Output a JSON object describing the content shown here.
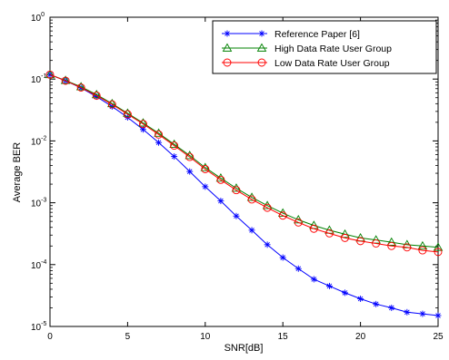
{
  "chart_data": {
    "type": "line",
    "xlabel": "SNR[dB]",
    "ylabel": "Average  BER",
    "xlim": [
      0,
      25
    ],
    "ylim_log10": [
      -5,
      0
    ],
    "y_scale": "log",
    "grid": false,
    "legend_position": "top-right",
    "x_ticks": [
      "0",
      "5",
      "10",
      "15",
      "20",
      "25"
    ],
    "y_ticks": [
      {
        "base": "10",
        "exp": "0"
      },
      {
        "base": "10",
        "exp": "-1"
      },
      {
        "base": "10",
        "exp": "-2"
      },
      {
        "base": "10",
        "exp": "-3"
      },
      {
        "base": "10",
        "exp": "-4"
      },
      {
        "base": "10",
        "exp": "-5"
      }
    ],
    "x": [
      0,
      1,
      2,
      3,
      4,
      5,
      6,
      7,
      8,
      9,
      10,
      11,
      12,
      13,
      14,
      15,
      16,
      17,
      18,
      19,
      20,
      21,
      22,
      23,
      24,
      25
    ],
    "series": [
      {
        "name": "Reference Paper [6]",
        "color": "#0000ff",
        "marker": "asterisk",
        "values": [
          0.118,
          0.094,
          0.072,
          0.052,
          0.036,
          0.024,
          0.0153,
          0.0094,
          0.0056,
          0.0032,
          0.00182,
          0.00107,
          0.00061,
          0.00036,
          0.00021,
          0.00013,
          8.6e-05,
          5.8e-05,
          4.5e-05,
          3.5e-05,
          2.8e-05,
          2.3e-05,
          2e-05,
          1.7e-05,
          1.6e-05,
          1.5e-05
        ]
      },
      {
        "name": "High Data Rate User Group",
        "color": "#008000",
        "marker": "triangle",
        "values": [
          0.118,
          0.095,
          0.075,
          0.056,
          0.04,
          0.028,
          0.0195,
          0.0133,
          0.0088,
          0.0058,
          0.0037,
          0.0025,
          0.00172,
          0.00122,
          0.0009,
          0.00068,
          0.00053,
          0.00043,
          0.00036,
          0.00031,
          0.00027,
          0.00025,
          0.00023,
          0.00021,
          0.0002,
          0.00019
        ]
      },
      {
        "name": "Low Data Rate User Group",
        "color": "#ff0000",
        "marker": "circle",
        "values": [
          0.118,
          0.094,
          0.073,
          0.054,
          0.039,
          0.027,
          0.0188,
          0.0127,
          0.0084,
          0.0055,
          0.0035,
          0.00235,
          0.0016,
          0.00113,
          0.00083,
          0.00062,
          0.00048,
          0.00038,
          0.00032,
          0.00027,
          0.00024,
          0.00022,
          0.0002,
          0.00019,
          0.00017,
          0.00016
        ]
      }
    ]
  }
}
